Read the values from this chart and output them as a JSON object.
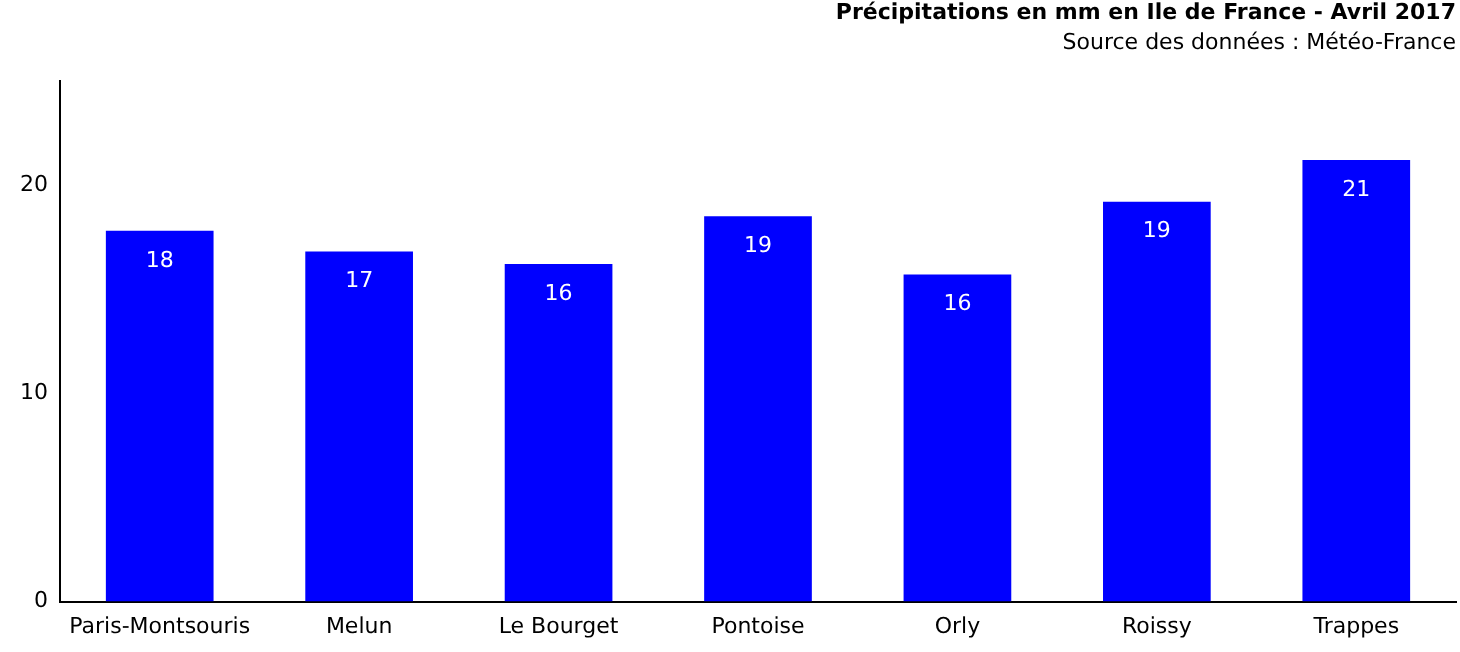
{
  "chart_data": {
    "type": "bar",
    "title": "Précipitations en mm en Ile de France - Avril 2017",
    "subtitle": "Source des données : Météo-France",
    "categories": [
      "Paris-Montsouris",
      "Melun",
      "Le Bourget",
      "Pontoise",
      "Orly",
      "Roissy",
      "Trappes"
    ],
    "values": [
      17.8,
      16.8,
      16.2,
      18.5,
      15.7,
      19.2,
      21.2
    ],
    "value_labels": [
      "18",
      "17",
      "16",
      "19",
      "16",
      "19",
      "21"
    ],
    "color": "#0000ff",
    "ylim": [
      0,
      25
    ],
    "yticks": [
      0,
      10,
      20
    ],
    "grid": false
  }
}
